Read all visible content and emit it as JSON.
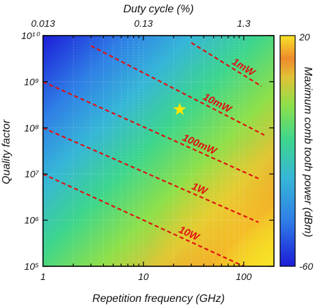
{
  "chart_data": {
    "type": "heatmap",
    "title": "",
    "xlabel": "Repetition frequency (GHz)",
    "ylabel": "Quality factor",
    "x_scale": "log",
    "y_scale": "log",
    "xlim": [
      1,
      200
    ],
    "ylim": [
      100000,
      10000000000
    ],
    "x_ticks": [
      {
        "value": 1,
        "label": "1"
      },
      {
        "value": 10,
        "label": "10"
      },
      {
        "value": 100,
        "label": "100"
      }
    ],
    "y_ticks": [
      {
        "value": 100000,
        "label": "10⁵"
      },
      {
        "value": 1000000,
        "label": "10⁶"
      },
      {
        "value": 10000000,
        "label": "10⁷"
      },
      {
        "value": 100000000,
        "label": "10⁸"
      },
      {
        "value": 1000000000,
        "label": "10⁹"
      },
      {
        "value": 10000000000,
        "label": "10¹⁰"
      }
    ],
    "top_axis": {
      "label": "Duty cycle (%)",
      "ticks": [
        {
          "label": "0.013",
          "at_x": 1
        },
        {
          "label": "0.13",
          "at_x": 10
        },
        {
          "label": "1.3",
          "at_x": 100
        }
      ]
    },
    "colorbar": {
      "label": "Maximum comb tooth power (dBm)",
      "min": -60,
      "max": 20,
      "min_label": "-60",
      "max_label": "20",
      "colors": [
        "#1c1cd8",
        "#2f7fe6",
        "#36b6d8",
        "#3ed68c",
        "#8ee04a",
        "#e0c236",
        "#f08a2c",
        "#f6e426"
      ]
    },
    "field": {
      "description_free": true,
      "power_dbm_at": [
        {
          "x": 1,
          "y": 10000000000,
          "value": -60
        },
        {
          "x": 200,
          "y": 100000,
          "value": 20
        }
      ]
    },
    "contours": [
      {
        "label": "1mW",
        "x": [
          30,
          150
        ],
        "y": [
          7000000000,
          800000000
        ]
      },
      {
        "label": "10mW",
        "x": [
          3,
          160
        ],
        "y": [
          6000000000,
          70000000
        ]
      },
      {
        "label": "100mW",
        "x": [
          1,
          140
        ],
        "y": [
          1000000000,
          8000000
        ]
      },
      {
        "label": "1W",
        "x": [
          1,
          140
        ],
        "y": [
          100000000,
          900000
        ]
      },
      {
        "label": "10W",
        "x": [
          1,
          100
        ],
        "y": [
          10000000,
          100000
        ]
      }
    ],
    "marker": {
      "shape": "star",
      "x": 23,
      "y": 250000000,
      "color": "#ffe600"
    },
    "grid": true,
    "line_color": "#e01010"
  }
}
